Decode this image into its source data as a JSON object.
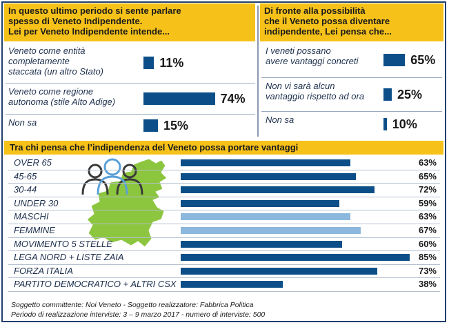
{
  "left_panel": {
    "title": "In questo ultimo periodo si sente parlare spesso di Veneto Indipendente. Lei per Veneto Indipendente intende...",
    "title_lines": [
      "In questo ultimo periodo si sente parlare",
      "spesso di Veneto Indipendente.",
      "Lei per Veneto Indipendente intende..."
    ]
  },
  "right_panel": {
    "title": "Di fronte alla possibilità che il Veneto possa diventare indipendente, Lei pensa che...",
    "title_lines": [
      "Di fronte alla possibilità",
      "che il Veneto possa diventare",
      "indipendente, Lei pensa che..."
    ]
  },
  "bottom_panel": {
    "title": "Tra chi pensa che l’indipendenza del Veneto possa portare vantaggi"
  },
  "footnote": {
    "line1": "Soggetto committente: Noi Veneto - Soggetto realizzatore: Fabbrica Politica",
    "line2": "Periodo di realizzazione interviste: 3 – 9 marzo 2017 - numero di interviste: 500"
  },
  "colors": {
    "bar_dark": "#0c4f88",
    "bar_light": "#8bb8dc",
    "header": "#f6c21a",
    "map": "#8cc63f"
  },
  "chart_data": [
    {
      "type": "bar",
      "title": "In questo ultimo periodo si sente parlare spesso di Veneto Indipendente. Lei per Veneto Indipendente intende...",
      "categories": [
        [
          "Veneto come entità",
          "completamente",
          "staccata (un altro Stato)"
        ],
        [
          "Veneto come regione",
          "autonoma (stile Alto Adige)"
        ],
        [
          "Non sa"
        ]
      ],
      "values": [
        11,
        74,
        15
      ],
      "labels": [
        "11%",
        "74%",
        "15%"
      ],
      "unit": "%"
    },
    {
      "type": "bar",
      "title": "Di fronte alla possibilità che il Veneto possa diventare indipendente, Lei pensa che...",
      "categories": [
        [
          "I veneti possano",
          "avere vantaggi concreti"
        ],
        [
          "Non vi sarà alcun",
          "vantaggio rispetto ad ora"
        ],
        [
          "Non sa"
        ]
      ],
      "values": [
        65,
        25,
        10
      ],
      "labels": [
        "65%",
        "25%",
        "10%"
      ],
      "unit": "%"
    },
    {
      "type": "bar",
      "title": "Tra chi pensa che l’indipendenza del Veneto possa portare vantaggi",
      "categories": [
        "OVER 65",
        "45-65",
        "30-44",
        "UNDER 30",
        "MASCHI",
        "FEMMINE",
        "MOVIMENTO 5 STELLE",
        "LEGA NORD + LISTE ZAIA",
        "FORZA ITALIA",
        "PARTITO DEMOCRATICO + ALTRI CSX"
      ],
      "values": [
        63,
        65,
        72,
        59,
        63,
        67,
        60,
        85,
        73,
        38
      ],
      "labels": [
        "63%",
        "65%",
        "72%",
        "59%",
        "63%",
        "67%",
        "60%",
        "85%",
        "73%",
        "38%"
      ],
      "bar_colors": [
        "dark",
        "dark",
        "dark",
        "dark",
        "light",
        "light",
        "dark",
        "dark",
        "dark",
        "dark"
      ],
      "unit": "%",
      "xlim": [
        0,
        100
      ]
    }
  ]
}
